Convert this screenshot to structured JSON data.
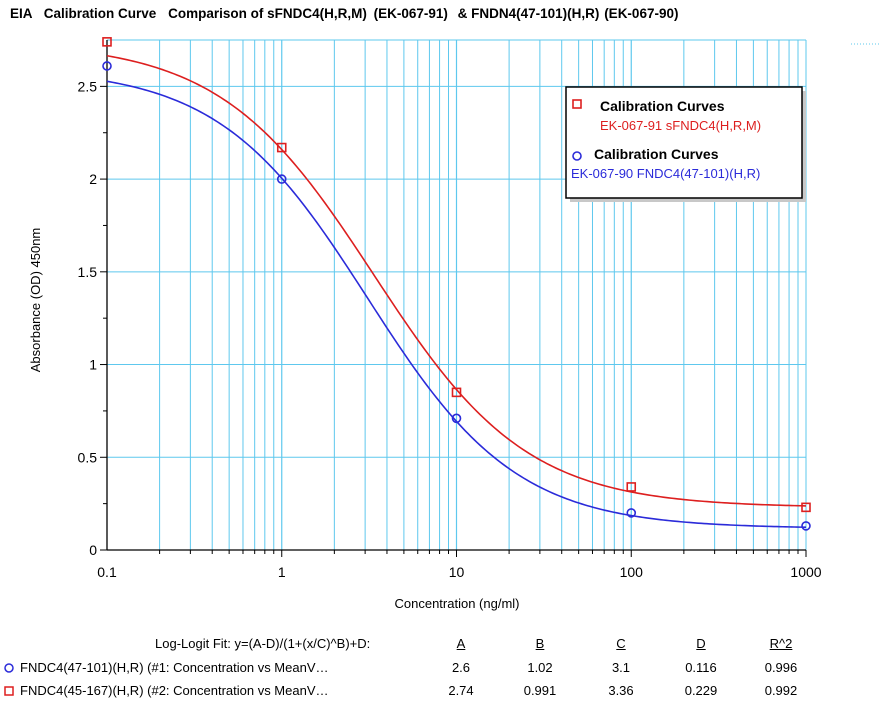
{
  "chart_data": {
    "type": "line",
    "title": {
      "part1": "EIA",
      "part2": "Calibration Curve",
      "part3": "Comparison of sFNDC4(H,R,M)",
      "part4": "(EK-067-91)",
      "part5": "& FNDN4(47-101)(H,R)",
      "part6": "(EK-067-90)"
    },
    "xlabel": "Concentration (ng/ml)",
    "ylabel": "Absorbance (OD) 450nm",
    "xscale": "log",
    "xlim": [
      0.1,
      1000
    ],
    "ylim": [
      0,
      2.75
    ],
    "x_ticks": [
      "0.1",
      "1",
      "10",
      "100",
      "1000"
    ],
    "y_ticks": [
      "0",
      "0.5",
      "1",
      "1.5",
      "2",
      "2.5"
    ],
    "grid": true,
    "legend_position": "upper-right",
    "legend": [
      {
        "title": "Calibration Curves",
        "subtitle": "EK-067-91 sFNDC4(H,R,M)",
        "marker": "square",
        "color": "#dd1f1f"
      },
      {
        "title": "Calibration Curves",
        "subtitle": "EK-067-90 FNDC4(47-101)(H,R)",
        "marker": "circle",
        "color": "#2b2bd9"
      }
    ],
    "series": [
      {
        "id": "ek-067-90",
        "marker": "circle",
        "color": "#2b2bd9",
        "x": [
          0.1,
          1,
          10,
          100,
          1000
        ],
        "y": [
          2.61,
          2.0,
          0.71,
          0.2,
          0.13
        ],
        "fit": {
          "A": 2.6,
          "B": 1.02,
          "C": 3.1,
          "D": 0.116
        }
      },
      {
        "id": "ek-067-91",
        "marker": "square",
        "color": "#dd1f1f",
        "x": [
          0.1,
          1,
          10,
          100,
          1000
        ],
        "y": [
          2.74,
          2.17,
          0.85,
          0.34,
          0.23
        ],
        "fit": {
          "A": 2.74,
          "B": 0.991,
          "C": 3.36,
          "D": 0.229
        }
      }
    ],
    "colors": {
      "grid": "#5ec8ee",
      "axis": "#000000",
      "legend_border": "#000000"
    }
  },
  "fit_table": {
    "header": "Log-Logit Fit: y=(A-D)/(1+(x/C)^B)+D:",
    "columns": [
      "A",
      "B",
      "C",
      "D",
      "R^2"
    ],
    "rows": [
      {
        "marker": "circle",
        "color": "#2b2bd9",
        "label": "FNDC4(47-101)(H,R) (#1: Concentration vs MeanV…",
        "A": "2.6",
        "B": "1.02",
        "C": "3.1",
        "D": "0.116",
        "R2": "0.996"
      },
      {
        "marker": "square",
        "color": "#dd1f1f",
        "label": "FNDC4(45-167)(H,R) (#2: Concentration vs MeanV…",
        "A": "2.74",
        "B": "0.991",
        "C": "3.36",
        "D": "0.229",
        "R2": "0.992"
      }
    ]
  }
}
